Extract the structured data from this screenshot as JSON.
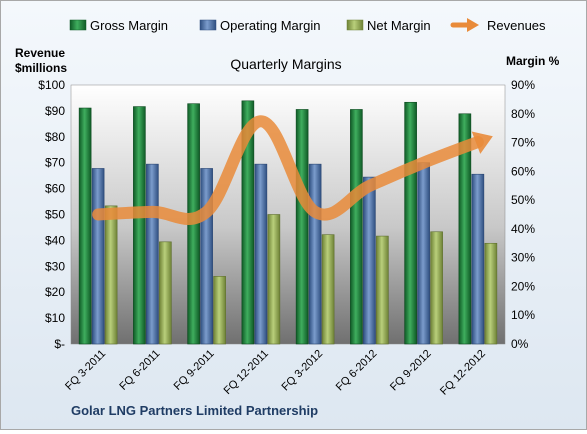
{
  "chart_data": {
    "type": "bar",
    "title": "Quarterly Margins",
    "categories": [
      "FQ 3-2011",
      "FQ 6-2011",
      "FQ 9-2011",
      "FQ 12-2011",
      "FQ 3-2012",
      "FQ 6-2012",
      "FQ 9-2012",
      "FQ 12-2012"
    ],
    "series": [
      {
        "name": "Gross Margin",
        "axis": "right",
        "color": "#1e7a3c",
        "values": [
          82,
          82.5,
          83.5,
          84.5,
          81.5,
          81.5,
          84,
          80
        ]
      },
      {
        "name": "Operating Margin",
        "axis": "right",
        "color": "#4a6fa5",
        "values": [
          61,
          62.5,
          61,
          62.5,
          62.5,
          58,
          63,
          59
        ]
      },
      {
        "name": "Net Margin",
        "axis": "right",
        "color": "#93a854",
        "values": [
          48,
          35.5,
          23.5,
          45,
          38,
          37.5,
          39,
          35
        ]
      },
      {
        "name": "Revenues",
        "axis": "left",
        "type": "line",
        "color": "#e98b3a",
        "values": [
          50,
          51,
          51,
          86,
          51,
          61,
          70,
          78
        ]
      }
    ],
    "left_axis": {
      "title": "Revenue\n$millions",
      "ylim": [
        0,
        100
      ],
      "ticks": [
        "$-",
        "$10",
        "$20",
        "$30",
        "$40",
        "$50",
        "$60",
        "$70",
        "$80",
        "$90",
        "$100"
      ]
    },
    "right_axis": {
      "title": "Margin %",
      "ylim": [
        0,
        90
      ],
      "ticks": [
        "0%",
        "10%",
        "20%",
        "30%",
        "40%",
        "50%",
        "60%",
        "70%",
        "80%",
        "90%"
      ]
    },
    "legend_position": "top",
    "grid": false,
    "footer": "Golar LNG Partners Limited Partnership"
  }
}
